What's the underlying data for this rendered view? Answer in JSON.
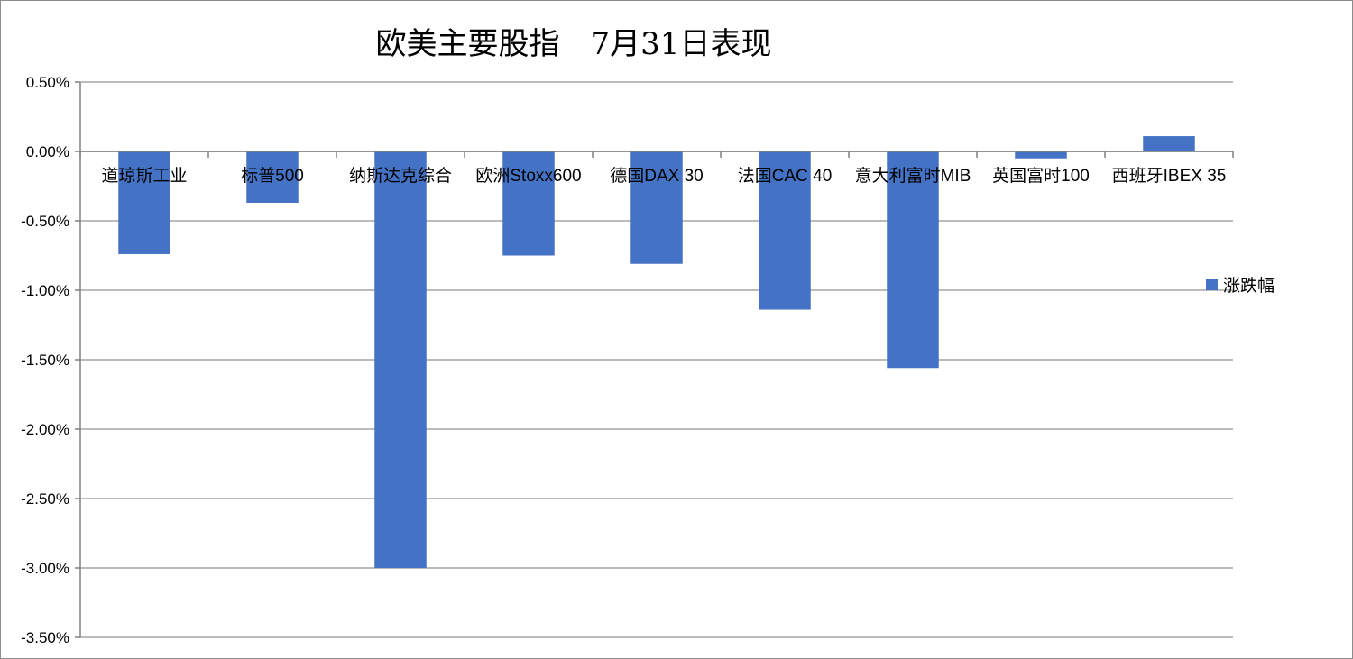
{
  "colors": {
    "bar": "#4472C4",
    "grid": "#a6a6a6",
    "axis": "#808080"
  },
  "chart_data": {
    "type": "bar",
    "title": "欧美主要股指　7月31日表现",
    "categories": [
      "道琼斯工业",
      "标普500",
      "纳斯达克综合",
      "欧洲Stoxx600",
      "德国DAX 30",
      "法国CAC 40",
      "意大利富时MIB",
      "英国富时100",
      "西班牙IBEX 35"
    ],
    "series": [
      {
        "name": "涨跌幅",
        "values": [
          -0.74,
          -0.37,
          -3.0,
          -0.75,
          -0.81,
          -1.14,
          -1.56,
          -0.05,
          0.11
        ]
      }
    ],
    "y_ticks": [
      "0.50%",
      "0.00%",
      "-0.50%",
      "-1.00%",
      "-1.50%",
      "-2.00%",
      "-2.50%",
      "-3.00%",
      "-3.50%"
    ],
    "y_unit": "%",
    "ylim": [
      -3.5,
      0.5
    ],
    "grid": true,
    "legend_position": "right"
  }
}
